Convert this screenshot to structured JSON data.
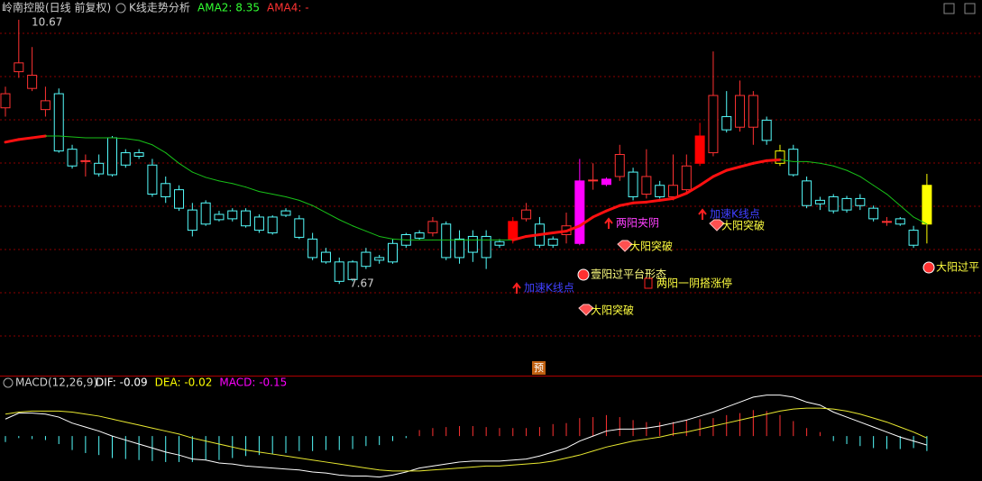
{
  "chart_data": [
    {
      "type": "candlestick",
      "title": "岭南控股(日线 前复权)",
      "indicator": "K线走势分析",
      "legend": [
        {
          "label": "AMA2: 8.35",
          "color": "#32ff32"
        },
        {
          "label": "AMA4: -",
          "color": "#ff3232"
        }
      ],
      "ylim": [
        6.65,
        10.71
      ],
      "open": [
        9.67,
        10.08,
        9.89,
        9.65,
        9.83,
        9.2,
        9.07,
        9.04,
        9.33,
        9.16,
        9.16,
        9.02,
        8.81,
        8.74,
        8.51,
        8.59,
        8.46,
        8.5,
        8.5,
        8.43,
        8.43,
        8.5,
        8.41,
        8.18,
        8.03,
        7.92,
        7.92,
        8.03,
        7.97,
        8.13,
        8.23,
        8.25,
        8.25,
        8.35,
        8.18,
        8.21,
        8.21,
        8.15,
        8.18,
        8.41,
        8.35,
        8.18,
        8.23,
        8.13,
        8.84,
        8.8,
        8.89,
        8.94,
        8.69,
        8.79,
        8.66,
        8.74,
        9.04,
        9.16,
        9.57,
        9.45,
        9.45,
        9.53,
        9.04,
        9.2,
        8.84,
        8.62,
        8.66,
        8.64,
        8.64,
        8.53,
        8.38,
        8.41,
        8.28,
        8.35
      ],
      "high": [
        9.91,
        10.67,
        10.36,
        9.91,
        9.89,
        9.25,
        9.14,
        9.14,
        9.35,
        9.2,
        9.2,
        9.09,
        8.89,
        8.79,
        8.59,
        8.62,
        8.5,
        8.53,
        8.53,
        8.46,
        8.45,
        8.53,
        8.45,
        8.25,
        8.08,
        7.97,
        7.94,
        8.08,
        8.0,
        8.18,
        8.25,
        8.28,
        8.43,
        8.38,
        8.28,
        8.28,
        8.28,
        8.18,
        8.43,
        8.59,
        8.43,
        8.21,
        8.48,
        9.09,
        9.04,
        8.88,
        9.25,
        8.99,
        9.2,
        8.84,
        9.14,
        9.14,
        9.5,
        10.31,
        9.86,
        9.98,
        9.86,
        9.57,
        9.25,
        9.25,
        8.89,
        8.66,
        8.69,
        8.67,
        8.69,
        8.56,
        8.43,
        8.43,
        8.33,
        8.92
      ],
      "low": [
        9.57,
        10.01,
        9.86,
        9.57,
        9.16,
        8.98,
        8.89,
        8.89,
        8.89,
        8.99,
        9.09,
        8.66,
        8.59,
        8.5,
        8.21,
        8.33,
        8.38,
        8.38,
        8.31,
        8.25,
        8.23,
        8.43,
        8.18,
        7.94,
        7.9,
        7.67,
        7.7,
        7.84,
        7.9,
        7.9,
        8.08,
        8.17,
        8.21,
        7.94,
        7.9,
        7.92,
        7.84,
        8.08,
        8.13,
        8.38,
        8.08,
        8.08,
        8.13,
        8.11,
        8.74,
        8.78,
        8.84,
        8.62,
        8.64,
        8.64,
        8.62,
        8.71,
        9.01,
        9.12,
        9.39,
        9.4,
        9.25,
        9.25,
        9.01,
        8.89,
        8.53,
        8.51,
        8.47,
        8.48,
        8.51,
        8.38,
        8.33,
        8.33,
        8.08,
        8.13
      ],
      "close": [
        9.83,
        10.18,
        10.04,
        9.75,
        9.18,
        9.01,
        9.07,
        8.92,
        8.91,
        9.02,
        9.12,
        8.69,
        8.66,
        8.53,
        8.28,
        8.35,
        8.4,
        8.41,
        8.33,
        8.28,
        8.25,
        8.45,
        8.2,
        7.97,
        7.92,
        7.7,
        7.72,
        7.87,
        7.94,
        7.92,
        8.11,
        8.19,
        8.38,
        7.97,
        7.97,
        8.03,
        7.97,
        8.11,
        8.38,
        8.51,
        8.11,
        8.11,
        8.33,
        8.84,
        8.85,
        8.86,
        9.14,
        8.66,
        8.89,
        8.66,
        8.79,
        9.01,
        9.35,
        9.81,
        9.42,
        9.81,
        9.81,
        9.3,
        9.18,
        8.91,
        8.56,
        8.58,
        8.5,
        8.51,
        8.56,
        8.41,
        8.38,
        8.35,
        8.11,
        8.79
      ],
      "up_color": "#ff3232",
      "down_color": "#54fcfc",
      "highlights": [
        {
          "index": 38,
          "color": "#ff0000",
          "filled": true
        },
        {
          "index": 43,
          "color": "#ff00ff",
          "filled": true
        },
        {
          "index": 45,
          "color": "#ff00ff",
          "filled": true
        },
        {
          "index": 52,
          "color": "#ff0000",
          "filled": true
        },
        {
          "index": 58,
          "color": "#ffff00",
          "filled": false
        },
        {
          "index": 69,
          "color": "#ffff00",
          "filled": true
        }
      ],
      "line": {
        "values": [
          9.28,
          9.31,
          9.33,
          9.35,
          9.35,
          9.34,
          9.33,
          9.33,
          9.33,
          9.32,
          9.3,
          9.25,
          9.16,
          9.04,
          8.94,
          8.88,
          8.84,
          8.81,
          8.77,
          8.72,
          8.69,
          8.66,
          8.62,
          8.56,
          8.48,
          8.4,
          8.33,
          8.27,
          8.21,
          8.18,
          8.17,
          8.17,
          8.17,
          8.17,
          8.17,
          8.17,
          8.17,
          8.17,
          8.17,
          8.21,
          8.23,
          8.25,
          8.27,
          8.33,
          8.43,
          8.5,
          8.56,
          8.59,
          8.6,
          8.62,
          8.64,
          8.7,
          8.79,
          8.89,
          8.96,
          9.0,
          9.04,
          9.07,
          9.08,
          9.06,
          9.06,
          9.04,
          9.01,
          8.96,
          8.89,
          8.79,
          8.69,
          8.56,
          8.43,
          8.35
        ],
        "up_color": "#ff1010",
        "down_color": "#18c018"
      },
      "high_label": "10.67",
      "low_label": "7.67",
      "forecast_label": "预",
      "annotations": [
        {
          "text": "两阳夹阴",
          "color": "#ff40ff"
        },
        {
          "text": "大阳突破",
          "color": "#ffff40"
        },
        {
          "text": "壹阳过平台形态",
          "color": "#ffff80"
        },
        {
          "text": "加速K线点",
          "color": "#4040ff"
        },
        {
          "text": "两阳一阴搭涨停",
          "color": "#ffff40"
        },
        {
          "text": "大阳突破",
          "color": "#ffff40"
        },
        {
          "text": "加速K线点",
          "color": "#4040ff"
        },
        {
          "text": "大阳突破",
          "color": "#ffff40"
        },
        {
          "text": "大阳过平",
          "color": "#ffff40"
        }
      ]
    },
    {
      "type": "macd",
      "title": "MACD(12,26,9)",
      "legend": [
        {
          "label": "DIF: -0.09",
          "color": "#ffffff"
        },
        {
          "label": "DEA: -0.02",
          "color": "#ffff00"
        },
        {
          "label": "MACD: -0.15",
          "color": "#ff00ff"
        }
      ],
      "ylim": [
        -0.45,
        0.47
      ],
      "series": [
        {
          "color": "#ffffff",
          "values": [
            0.17,
            0.23,
            0.23,
            0.22,
            0.19,
            0.13,
            0.09,
            0.05,
            0.0,
            -0.04,
            -0.08,
            -0.12,
            -0.16,
            -0.19,
            -0.23,
            -0.24,
            -0.27,
            -0.28,
            -0.3,
            -0.31,
            -0.32,
            -0.33,
            -0.34,
            -0.36,
            -0.37,
            -0.39,
            -0.4,
            -0.4,
            -0.41,
            -0.39,
            -0.36,
            -0.32,
            -0.3,
            -0.28,
            -0.26,
            -0.25,
            -0.25,
            -0.25,
            -0.24,
            -0.23,
            -0.2,
            -0.16,
            -0.12,
            -0.05,
            0.0,
            0.05,
            0.07,
            0.07,
            0.08,
            0.1,
            0.13,
            0.16,
            0.2,
            0.24,
            0.29,
            0.34,
            0.39,
            0.41,
            0.41,
            0.39,
            0.34,
            0.31,
            0.24,
            0.19,
            0.14,
            0.09,
            0.04,
            -0.01,
            -0.05,
            -0.09
          ]
        },
        {
          "color": "#e8e830",
          "values": [
            0.22,
            0.24,
            0.25,
            0.25,
            0.25,
            0.24,
            0.22,
            0.2,
            0.17,
            0.14,
            0.11,
            0.08,
            0.05,
            0.02,
            -0.02,
            -0.05,
            -0.08,
            -0.11,
            -0.14,
            -0.16,
            -0.18,
            -0.2,
            -0.22,
            -0.24,
            -0.26,
            -0.28,
            -0.3,
            -0.32,
            -0.34,
            -0.35,
            -0.35,
            -0.35,
            -0.34,
            -0.33,
            -0.32,
            -0.31,
            -0.3,
            -0.3,
            -0.29,
            -0.28,
            -0.27,
            -0.25,
            -0.22,
            -0.19,
            -0.15,
            -0.11,
            -0.08,
            -0.05,
            -0.03,
            -0.01,
            0.02,
            0.04,
            0.07,
            0.1,
            0.13,
            0.16,
            0.19,
            0.22,
            0.25,
            0.27,
            0.28,
            0.28,
            0.27,
            0.25,
            0.22,
            0.18,
            0.14,
            0.09,
            0.04,
            -0.02
          ]
        }
      ],
      "bars": {
        "up_color": "#ff3232",
        "down_color": "#54fcfc",
        "values": [
          -0.06,
          -0.02,
          -0.03,
          -0.04,
          -0.08,
          -0.14,
          -0.17,
          -0.19,
          -0.22,
          -0.23,
          -0.24,
          -0.25,
          -0.26,
          -0.26,
          -0.26,
          -0.24,
          -0.24,
          -0.22,
          -0.2,
          -0.19,
          -0.18,
          -0.17,
          -0.15,
          -0.15,
          -0.14,
          -0.14,
          -0.13,
          -0.1,
          -0.09,
          -0.05,
          -0.02,
          0.06,
          0.08,
          0.09,
          0.1,
          0.1,
          0.09,
          0.08,
          0.08,
          0.08,
          0.09,
          0.12,
          0.13,
          0.18,
          0.19,
          0.21,
          0.19,
          0.16,
          0.14,
          0.14,
          0.14,
          0.16,
          0.17,
          0.18,
          0.21,
          0.23,
          0.26,
          0.25,
          0.21,
          0.15,
          0.08,
          0.04,
          -0.05,
          -0.08,
          -0.1,
          -0.12,
          -0.13,
          -0.13,
          -0.12,
          -0.15
        ]
      }
    }
  ]
}
